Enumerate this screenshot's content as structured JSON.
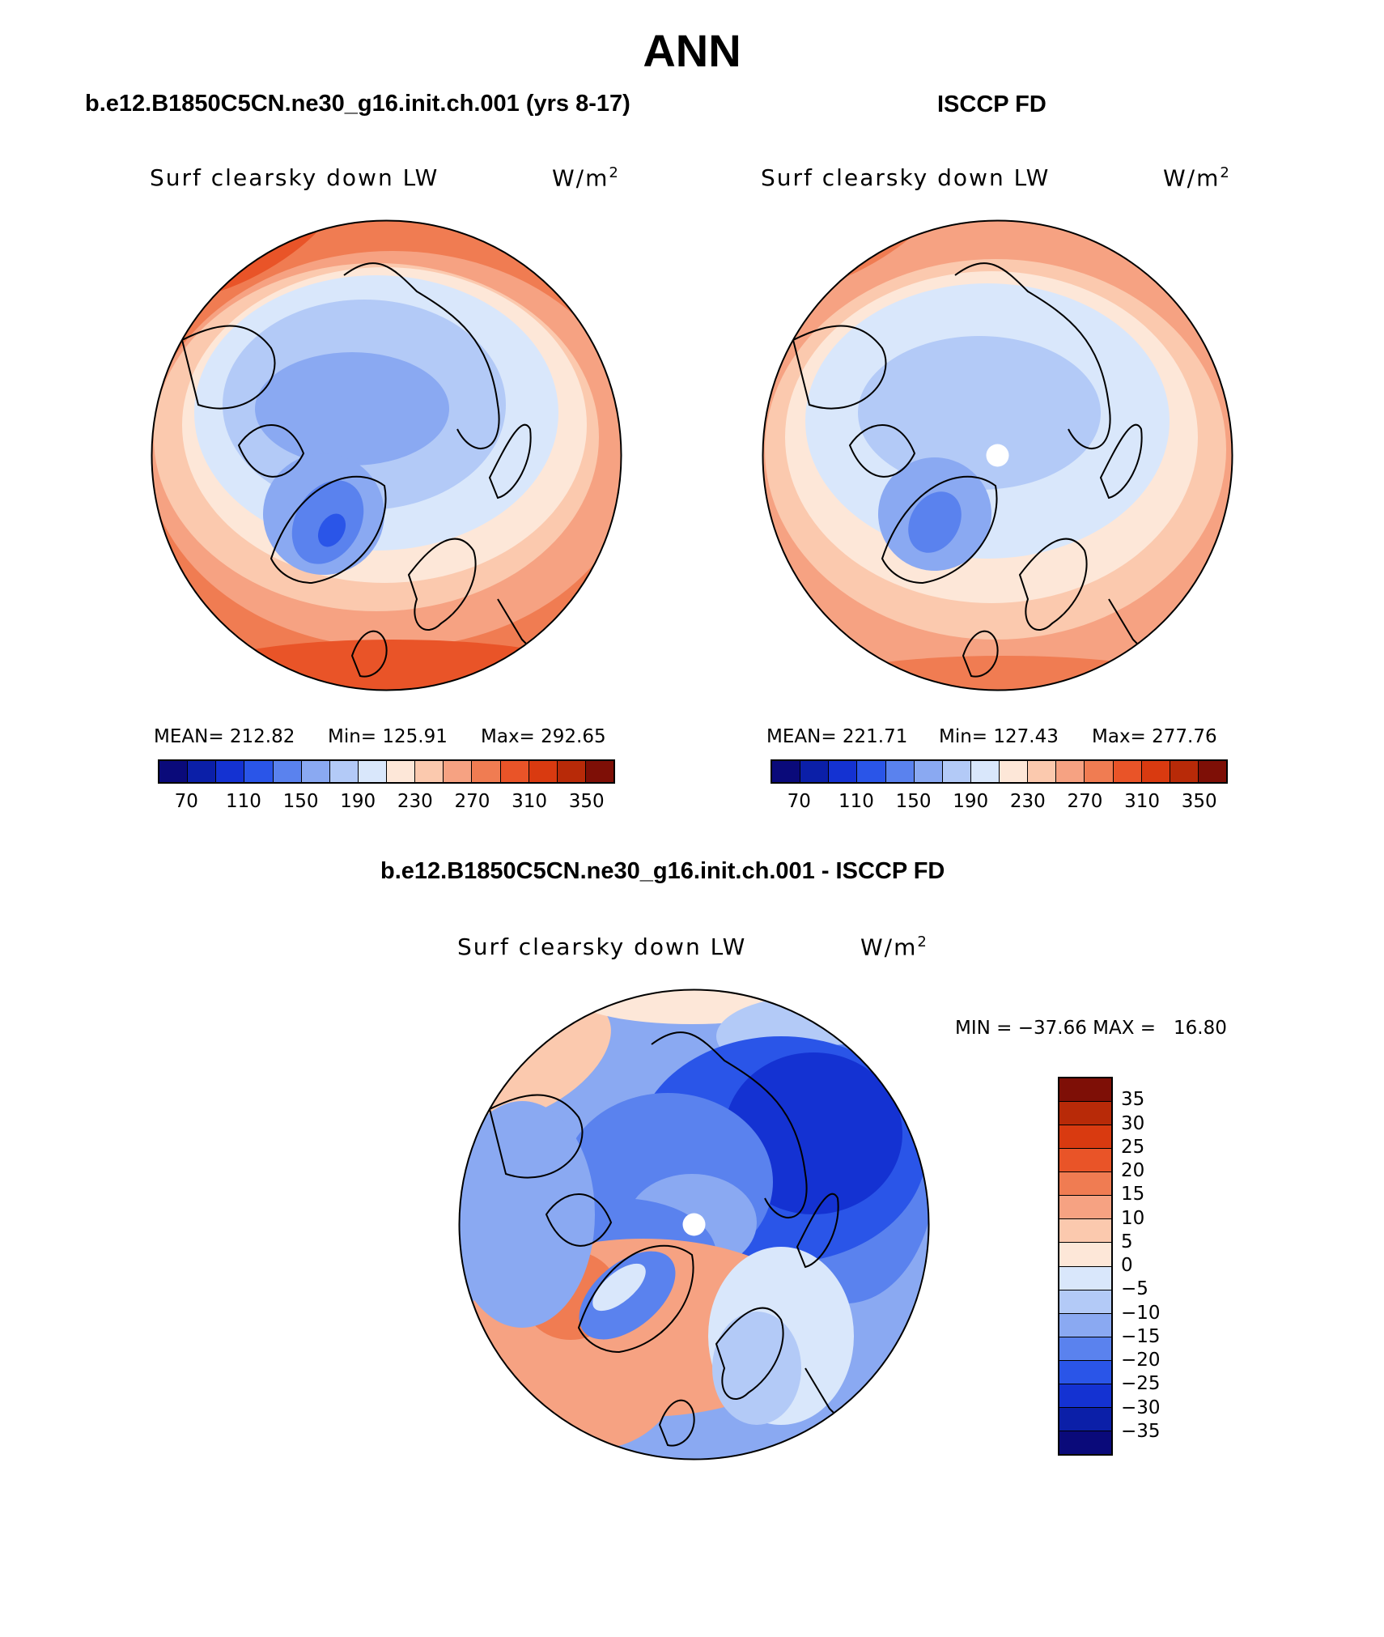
{
  "page": {
    "title": "ANN",
    "diff_title": "b.e12.B1850C5CN.ne30_g16.init.ch.001 - ISCCP FD"
  },
  "panels": [
    {
      "case_title": "b.e12.B1850C5CN.ne30_g16.init.ch.001 (yrs 8-17)",
      "variable": "Surf clearsky down LW",
      "units": "W/m",
      "units_sup": "2",
      "mean": "MEAN= 212.82",
      "min": "Min= 125.91",
      "max": "Max= 292.65"
    },
    {
      "case_title": "ISCCP FD",
      "variable": "Surf clearsky down LW",
      "units": "W/m",
      "units_sup": "2",
      "mean": "MEAN= 221.71",
      "min": "Min= 127.43",
      "max": "Max= 277.76"
    }
  ],
  "diff_panel": {
    "variable": "Surf clearsky down LW",
    "units": "W/m",
    "units_sup": "2",
    "minmax": "MIN = −37.66 MAX =   16.80"
  },
  "colorbar_abs": {
    "colors": [
      "#0a0a7a",
      "#0b1fa8",
      "#1432d2",
      "#2a55e8",
      "#5a82ee",
      "#8aa9f2",
      "#b3caf7",
      "#d9e7fb",
      "#fde7d8",
      "#fbc9ae",
      "#f6a282",
      "#f07c52",
      "#e95428",
      "#d93a10",
      "#b82a08",
      "#7e0f06"
    ],
    "ticks": [
      "70",
      "110",
      "150",
      "190",
      "230",
      "270",
      "310",
      "350"
    ]
  },
  "colorbar_diff": {
    "colors": [
      "#7e0f06",
      "#b82a08",
      "#d93a10",
      "#e95428",
      "#f07c52",
      "#f6a282",
      "#fbc9ae",
      "#fde7d8",
      "#d9e7fb",
      "#b3caf7",
      "#8aa9f2",
      "#5a82ee",
      "#2a55e8",
      "#1432d2",
      "#0b1fa8",
      "#0a0a7a"
    ],
    "ticks": [
      "35",
      "30",
      "25",
      "20",
      "15",
      "10",
      "5",
      "0",
      "−5",
      "−10",
      "−15",
      "−20",
      "−25",
      "−30",
      "−35"
    ]
  }
}
